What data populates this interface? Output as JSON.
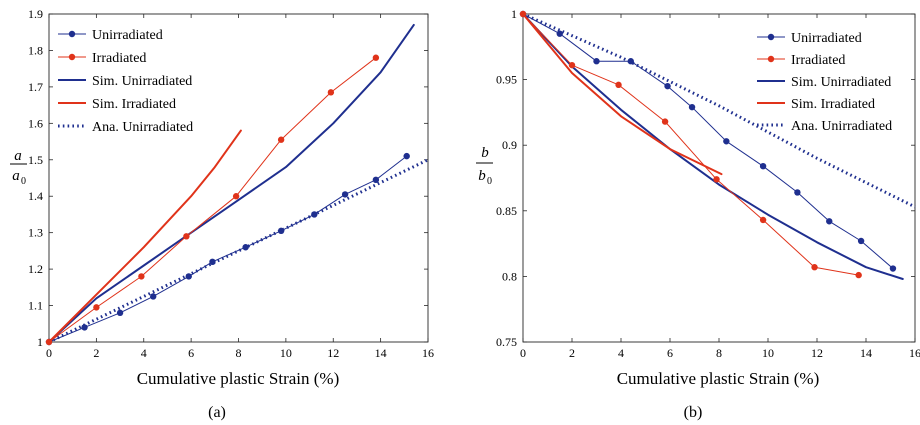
{
  "chart_data": [
    {
      "type": "line",
      "caption": "(a)",
      "xlabel": "Cumulative plastic Strain (%)",
      "ylabel_num": "a",
      "ylabel_den": "a",
      "ylabel_den_sub": "0",
      "xlim": [
        0,
        16
      ],
      "ylim": [
        1,
        1.9
      ],
      "xticks": [
        0,
        2,
        4,
        6,
        8,
        10,
        12,
        14,
        16
      ],
      "yticks": [
        1,
        1.1,
        1.2,
        1.3,
        1.4,
        1.5,
        1.6,
        1.7,
        1.8,
        1.9
      ],
      "ytick_labels": [
        "1",
        "1.1",
        "1.2",
        "1.3",
        "1.4",
        "1.5",
        "1.6",
        "1.7",
        "1.8",
        "1.9"
      ],
      "legend_position": "top-left",
      "series": [
        {
          "name": "Unirradiated",
          "color": "#1f2f8f",
          "style": "line-marker",
          "x": [
            0,
            1.5,
            3.0,
            4.4,
            5.9,
            6.9,
            8.3,
            9.8,
            11.2,
            12.5,
            13.8,
            15.1
          ],
          "y": [
            1.0,
            1.04,
            1.08,
            1.125,
            1.18,
            1.22,
            1.26,
            1.305,
            1.35,
            1.405,
            1.445,
            1.51
          ]
        },
        {
          "name": "Irradiated",
          "color": "#e0331a",
          "style": "line-marker",
          "x": [
            0,
            2.0,
            3.9,
            5.8,
            7.9,
            9.8,
            11.9,
            13.8
          ],
          "y": [
            1.0,
            1.095,
            1.18,
            1.29,
            1.4,
            1.555,
            1.685,
            1.78
          ]
        },
        {
          "name": "Sim. Unirradiated",
          "color": "#1f2f8f",
          "style": "solid",
          "x": [
            0,
            2,
            4,
            6,
            8,
            10,
            12,
            14,
            15.4
          ],
          "y": [
            1.0,
            1.12,
            1.21,
            1.3,
            1.39,
            1.48,
            1.6,
            1.74,
            1.87
          ]
        },
        {
          "name": "Sim. Irradiated",
          "color": "#e0331a",
          "style": "solid",
          "x": [
            0,
            2,
            4,
            6,
            7,
            8.1
          ],
          "y": [
            1.0,
            1.13,
            1.26,
            1.4,
            1.48,
            1.58
          ]
        },
        {
          "name": "Ana. Unirradiated",
          "color": "#1f2f8f",
          "style": "dotted",
          "x": [
            0,
            16
          ],
          "y": [
            1.0,
            1.5
          ]
        }
      ]
    },
    {
      "type": "line",
      "caption": "(b)",
      "xlabel": "Cumulative plastic Strain (%)",
      "ylabel_num": "b",
      "ylabel_den": "b",
      "ylabel_den_sub": "0",
      "xlim": [
        0,
        16
      ],
      "ylim": [
        0.75,
        1
      ],
      "xticks": [
        0,
        2,
        4,
        6,
        8,
        10,
        12,
        14,
        16
      ],
      "yticks": [
        0.75,
        0.8,
        0.85,
        0.9,
        0.95,
        1
      ],
      "ytick_labels": [
        "0.75",
        "0.8",
        "0.85",
        "0.9",
        "0.95",
        "1"
      ],
      "legend_position": "top-right",
      "series": [
        {
          "name": "Unirradiated",
          "color": "#1f2f8f",
          "style": "line-marker",
          "x": [
            0,
            1.5,
            3.0,
            4.4,
            5.9,
            6.9,
            8.3,
            9.8,
            11.2,
            12.5,
            13.8,
            15.1
          ],
          "y": [
            1.0,
            0.985,
            0.964,
            0.964,
            0.945,
            0.929,
            0.903,
            0.884,
            0.864,
            0.842,
            0.827,
            0.806
          ]
        },
        {
          "name": "Irradiated",
          "color": "#e0331a",
          "style": "line-marker",
          "x": [
            0,
            2.0,
            3.9,
            5.8,
            7.9,
            9.8,
            11.9,
            13.7
          ],
          "y": [
            1.0,
            0.961,
            0.946,
            0.918,
            0.874,
            0.843,
            0.807,
            0.801
          ]
        },
        {
          "name": "Sim. Unirradiated",
          "color": "#1f2f8f",
          "style": "solid",
          "x": [
            0,
            2,
            4,
            6,
            8,
            10,
            12,
            14,
            15.5
          ],
          "y": [
            1.0,
            0.96,
            0.927,
            0.897,
            0.87,
            0.847,
            0.826,
            0.807,
            0.798
          ]
        },
        {
          "name": "Sim. Irradiated",
          "color": "#e0331a",
          "style": "solid",
          "x": [
            0,
            2,
            4,
            6,
            8.1
          ],
          "y": [
            1.0,
            0.955,
            0.922,
            0.897,
            0.878
          ]
        },
        {
          "name": "Ana. Unirradiated",
          "color": "#1f2f8f",
          "style": "dotted",
          "x": [
            0,
            4,
            8,
            12,
            16
          ],
          "y": [
            1.0,
            0.967,
            0.93,
            0.89,
            0.853
          ]
        }
      ]
    }
  ]
}
